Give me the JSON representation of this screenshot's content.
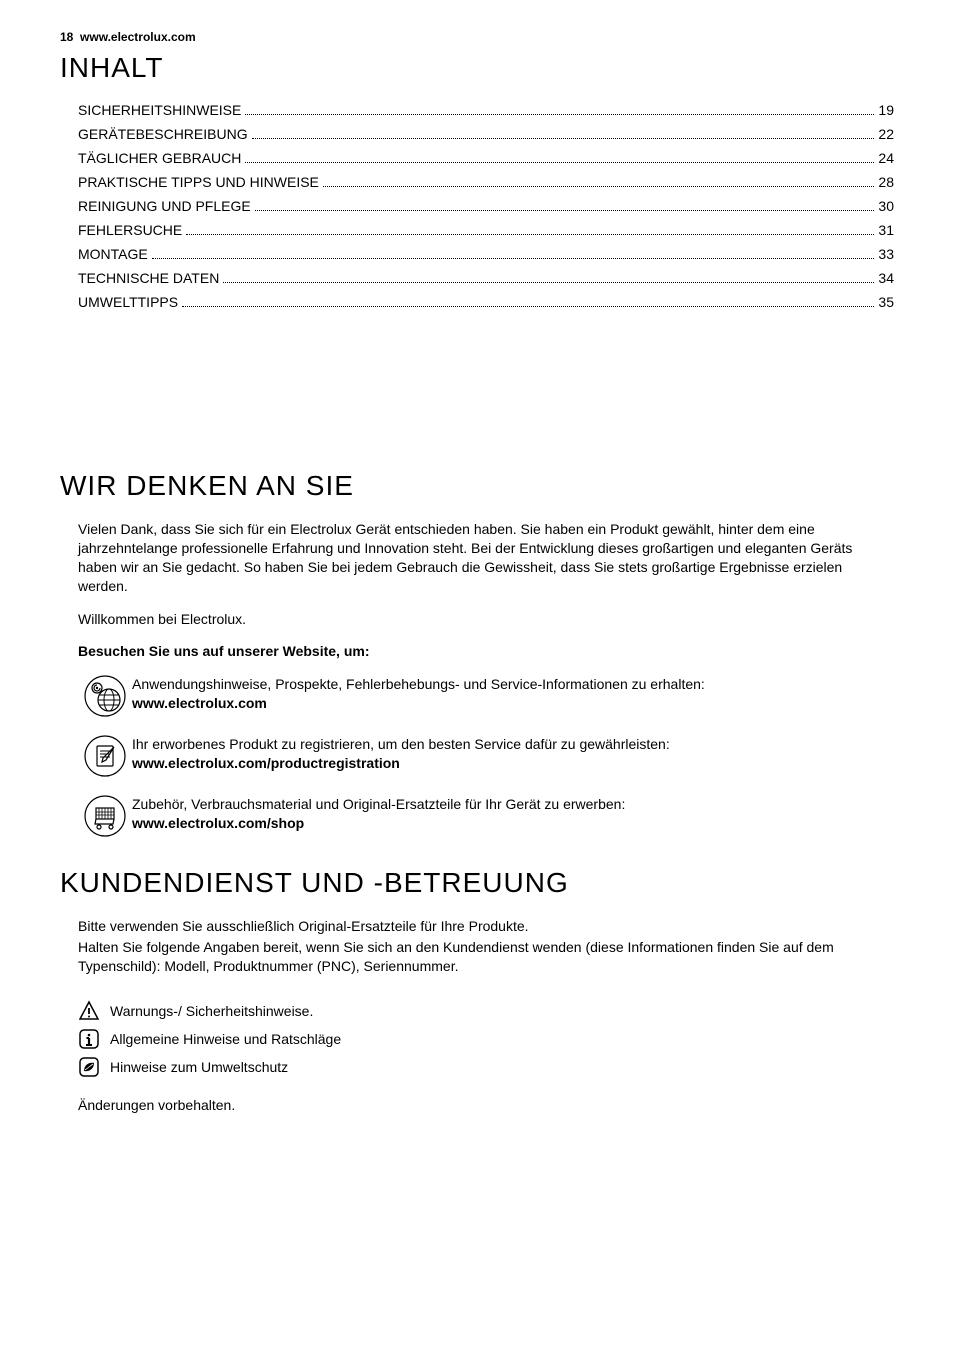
{
  "header": {
    "page_number": "18",
    "site": "www.electrolux.com"
  },
  "sections": {
    "toc_title": "INHALT",
    "think_title": "WIR DENKEN AN SIE",
    "service_title": "KUNDENDIENST UND -BETREUUNG"
  },
  "toc": [
    {
      "label": "SICHERHEITSHINWEISE",
      "page": "19"
    },
    {
      "label": "GERÄTEBESCHREIBUNG",
      "page": "22"
    },
    {
      "label": "TÄGLICHER GEBRAUCH",
      "page": "24"
    },
    {
      "label": "PRAKTISCHE TIPPS UND HINWEISE",
      "page": "28"
    },
    {
      "label": "REINIGUNG UND PFLEGE",
      "page": "30"
    },
    {
      "label": "FEHLERSUCHE",
      "page": "31"
    },
    {
      "label": "MONTAGE",
      "page": "33"
    },
    {
      "label": "TECHNISCHE DATEN",
      "page": "34"
    },
    {
      "label": "UMWELTTIPPS",
      "page": "35"
    }
  ],
  "think": {
    "p1": "Vielen Dank, dass Sie sich für ein Electrolux Gerät entschieden haben. Sie haben ein Produkt gewählt, hinter dem eine jahrzehntelange professionelle Erfahrung und Innovation steht. Bei der Entwicklung dieses großartigen und eleganten Geräts haben wir an Sie gedacht. So haben Sie bei jedem Gebrauch die Gewissheit, dass Sie stets großartige Ergebnisse erzielen werden.",
    "p2": "Willkommen bei Electrolux.",
    "website_heading": "Besuchen Sie uns auf unserer Website, um:",
    "items": [
      {
        "text": "Anwendungshinweise, Prospekte, Fehlerbehebungs- und Service-Informationen zu erhalten:",
        "link": "www.electrolux.com"
      },
      {
        "text": "Ihr erworbenes Produkt zu registrieren, um den besten Service dafür zu gewährleisten:",
        "link": "www.electrolux.com/productregistration"
      },
      {
        "text": "Zubehör, Verbrauchsmaterial und Original-Ersatzteile für Ihr Gerät zu erwerben:",
        "link": "www.electrolux.com/shop"
      }
    ]
  },
  "service": {
    "p1": "Bitte verwenden Sie ausschließlich Original-Ersatzteile für Ihre Produkte.",
    "p2": "Halten Sie folgende Angaben bereit, wenn Sie sich an den Kundendienst wenden (diese Informationen finden Sie auf dem Typenschild): Modell, Produktnummer (PNC), Seriennummer.",
    "notes": [
      "Warnungs-/ Sicherheitshinweise.",
      "Allgemeine Hinweise und Ratschläge",
      "Hinweise zum Umweltschutz"
    ],
    "footer": "Änderungen vorbehalten."
  }
}
